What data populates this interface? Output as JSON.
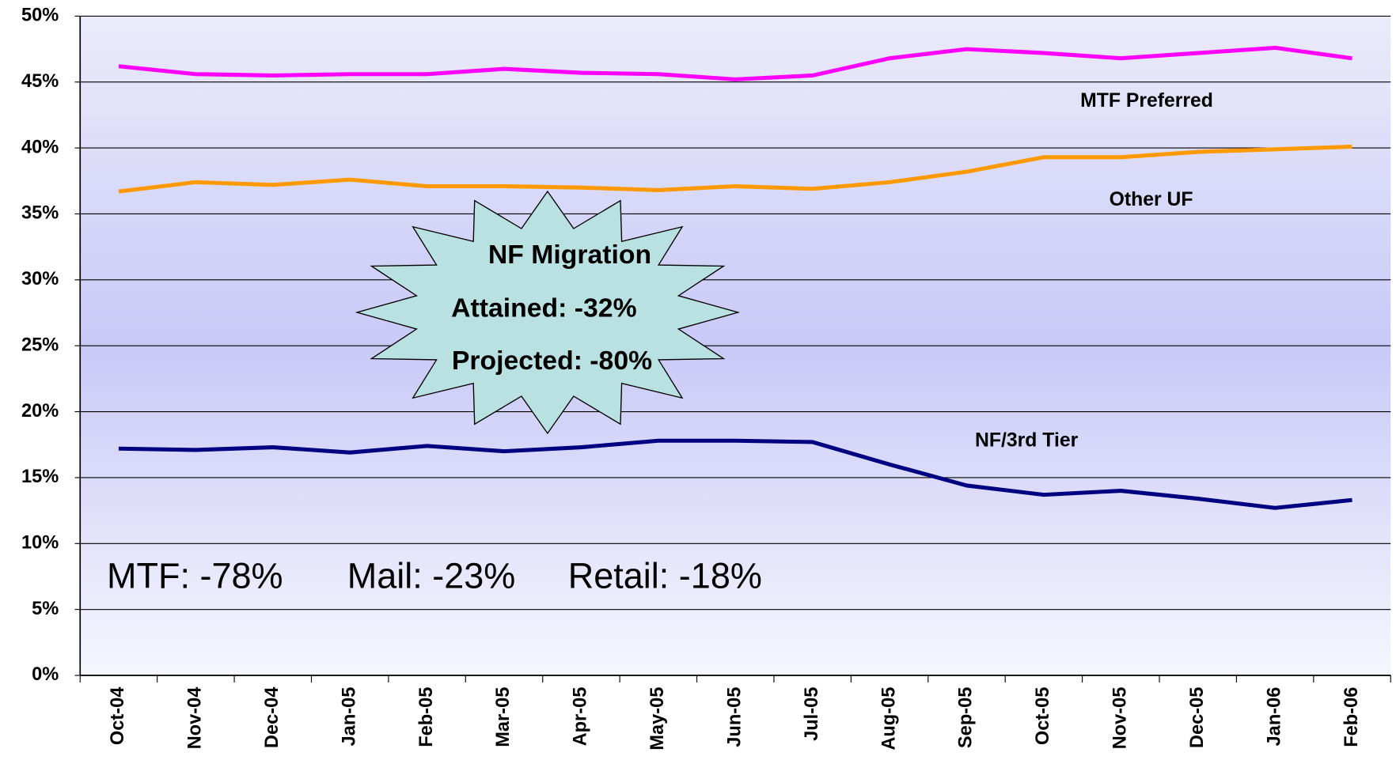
{
  "chart_data": {
    "type": "line",
    "categories": [
      "Oct-04",
      "Nov-04",
      "Dec-04",
      "Jan-05",
      "Feb-05",
      "Mar-05",
      "Apr-05",
      "May-05",
      "Jun-05",
      "Jul-05",
      "Aug-05",
      "Sep-05",
      "Oct-05",
      "Nov-05",
      "Dec-05",
      "Jan-06",
      "Feb-06"
    ],
    "series": [
      {
        "name": "MTF Preferred",
        "color": "#ff00ff",
        "values": [
          46.2,
          45.6,
          45.5,
          45.6,
          45.6,
          46.0,
          45.7,
          45.6,
          45.2,
          45.5,
          46.8,
          47.5,
          47.2,
          46.8,
          47.2,
          47.6,
          46.8
        ]
      },
      {
        "name": "Other UF",
        "color": "#ff9900",
        "values": [
          36.7,
          37.4,
          37.2,
          37.6,
          37.1,
          37.1,
          37.0,
          36.8,
          37.1,
          36.9,
          37.4,
          38.2,
          39.3,
          39.3,
          39.7,
          39.9,
          40.1
        ]
      },
      {
        "name": "NF/3rd Tier",
        "color": "#000080",
        "values": [
          17.2,
          17.1,
          17.3,
          16.9,
          17.4,
          17.0,
          17.3,
          17.8,
          17.8,
          17.7,
          16.0,
          14.4,
          13.7,
          14.0,
          13.4,
          12.7,
          13.3
        ]
      }
    ],
    "ylim": [
      0,
      50
    ],
    "yticks": [
      {
        "value": 0,
        "label": "0%"
      },
      {
        "value": 5,
        "label": "5%"
      },
      {
        "value": 10,
        "label": "10%"
      },
      {
        "value": 15,
        "label": "15%"
      },
      {
        "value": 20,
        "label": "20%"
      },
      {
        "value": 25,
        "label": "25%"
      },
      {
        "value": 30,
        "label": "30%"
      },
      {
        "value": 35,
        "label": "35%"
      },
      {
        "value": 40,
        "label": "40%"
      },
      {
        "value": 45,
        "label": "45%"
      },
      {
        "value": 50,
        "label": "50%"
      }
    ],
    "grid": true,
    "callout": [
      "NF Migration",
      "Attained: -32%",
      "Projected: -80%"
    ],
    "annotations": [
      "MTF: -78%",
      "Mail: -23%",
      "Retail: -18%"
    ]
  }
}
